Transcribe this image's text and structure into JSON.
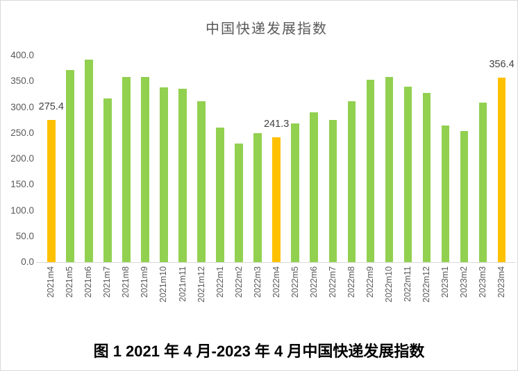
{
  "page": {
    "title": "中国快递发展指数",
    "caption": "图 1 2021 年 4 月-2023 年 4 月中国快递发展指数"
  },
  "colors": {
    "background": "#FFFFFF",
    "border": "#D9D9D9",
    "axis_line": "#D9D9D9",
    "axis_text": "#595959",
    "title_text": "#595959",
    "data_label_text": "#404040",
    "caption_text": "#000000",
    "bar_green": "#92D050",
    "bar_orange": "#FFC000"
  },
  "chart_data": {
    "type": "bar",
    "title": "中国快递发展指数",
    "xlabel": "",
    "ylabel": "",
    "ylim": [
      0,
      400
    ],
    "ytick_step": 50,
    "ytick_labels": [
      "0.0",
      "50.0",
      "100.0",
      "150.0",
      "200.0",
      "250.0",
      "300.0",
      "350.0",
      "400.0"
    ],
    "grid": false,
    "legend_position": "none",
    "categories": [
      "2021m4",
      "2021m5",
      "2021m6",
      "2021m7",
      "2021m8",
      "2021m9",
      "2021m10",
      "2021m11",
      "2021m12",
      "2022m1",
      "2022m2",
      "2022m3",
      "2022m4",
      "2022m5",
      "2022m6",
      "2022m7",
      "2022m8",
      "2022m9",
      "2022m10",
      "2022m11",
      "2022m12",
      "2023m1",
      "2023m2",
      "2023m3",
      "2023m4"
    ],
    "values": [
      275.4,
      372,
      392,
      317,
      358,
      359,
      338,
      335,
      312,
      260,
      229,
      250,
      241.3,
      269,
      290,
      275,
      312,
      353,
      358,
      340,
      328,
      264,
      254,
      309,
      356.4
    ],
    "highlighted_indices": [
      0,
      12,
      24
    ],
    "highlight_color": "#FFC000",
    "default_color": "#92D050",
    "data_labels": [
      {
        "index": 0,
        "text": "275.4"
      },
      {
        "index": 12,
        "text": "241.3"
      },
      {
        "index": 24,
        "text": "356.4"
      }
    ]
  }
}
